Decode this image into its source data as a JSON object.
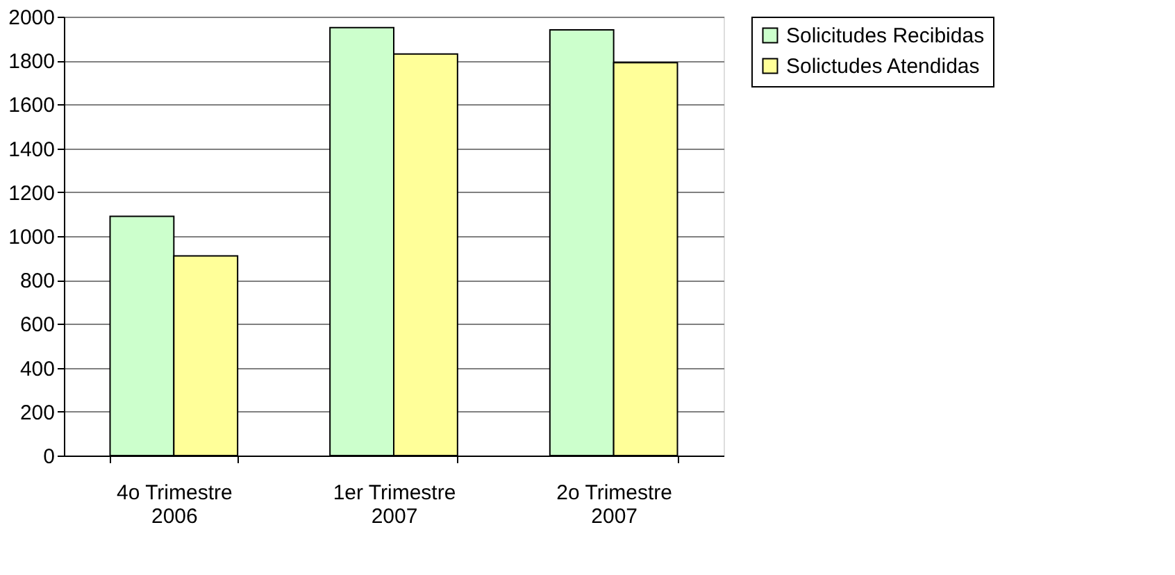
{
  "chart_data": {
    "type": "bar",
    "categories": [
      "4o Trimestre\n2006",
      "1er Trimestre\n2007",
      "2o Trimestre\n2007"
    ],
    "series": [
      {
        "name": "Solicitudes Recibidas",
        "color": "#ccffcc",
        "values": [
          1090,
          1950,
          1940
        ]
      },
      {
        "name": "Solictudes Atendidas",
        "color": "#ffff99",
        "values": [
          910,
          1830,
          1790
        ]
      }
    ],
    "ylim": [
      0,
      2000
    ],
    "yticks": [
      0,
      200,
      400,
      600,
      800,
      1000,
      1200,
      1400,
      1600,
      1800,
      2000
    ],
    "grid": "y",
    "legend": "right"
  }
}
